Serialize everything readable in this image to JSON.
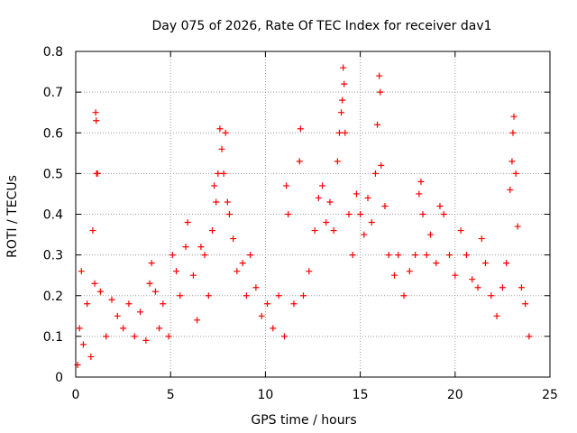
{
  "chart_data": {
    "type": "scatter",
    "title": "Day 075 of 2026, Rate Of TEC Index for receiver dav1",
    "xlabel": "GPS time / hours",
    "ylabel": "ROTI / TECUs",
    "xlim": [
      0,
      25
    ],
    "ylim": [
      0,
      0.8
    ],
    "xticks": [
      0,
      5,
      10,
      15,
      20,
      25
    ],
    "yticks": [
      0,
      0.1,
      0.2,
      0.3,
      0.4,
      0.5,
      0.6,
      0.7,
      0.8
    ],
    "xtick_labels": [
      "0",
      "5",
      "10",
      "15",
      "20",
      "25"
    ],
    "ytick_labels": [
      "0",
      "0.1",
      "0.2",
      "0.3",
      "0.4",
      "0.5",
      "0.6",
      "0.7",
      "0.8"
    ],
    "grid": true,
    "marker": "+",
    "color": "#ff0000",
    "series": [
      {
        "name": "ROTI",
        "points": [
          [
            0.1,
            0.03
          ],
          [
            0.2,
            0.12
          ],
          [
            0.3,
            0.26
          ],
          [
            0.4,
            0.08
          ],
          [
            0.6,
            0.18
          ],
          [
            0.8,
            0.05
          ],
          [
            0.9,
            0.36
          ],
          [
            1.0,
            0.23
          ],
          [
            1.05,
            0.65
          ],
          [
            1.08,
            0.63
          ],
          [
            1.1,
            0.5
          ],
          [
            1.15,
            0.5
          ],
          [
            1.3,
            0.21
          ],
          [
            1.6,
            0.1
          ],
          [
            1.9,
            0.19
          ],
          [
            2.2,
            0.15
          ],
          [
            2.5,
            0.12
          ],
          [
            2.8,
            0.18
          ],
          [
            3.1,
            0.1
          ],
          [
            3.4,
            0.16
          ],
          [
            3.7,
            0.09
          ],
          [
            3.9,
            0.23
          ],
          [
            4.0,
            0.28
          ],
          [
            4.2,
            0.21
          ],
          [
            4.4,
            0.12
          ],
          [
            4.6,
            0.18
          ],
          [
            4.9,
            0.1
          ],
          [
            5.1,
            0.3
          ],
          [
            5.3,
            0.26
          ],
          [
            5.5,
            0.2
          ],
          [
            5.8,
            0.32
          ],
          [
            5.9,
            0.38
          ],
          [
            6.2,
            0.25
          ],
          [
            6.4,
            0.14
          ],
          [
            6.6,
            0.32
          ],
          [
            6.8,
            0.3
          ],
          [
            7.0,
            0.2
          ],
          [
            7.2,
            0.36
          ],
          [
            7.3,
            0.47
          ],
          [
            7.4,
            0.43
          ],
          [
            7.5,
            0.5
          ],
          [
            7.6,
            0.61
          ],
          [
            7.7,
            0.56
          ],
          [
            7.8,
            0.5
          ],
          [
            7.9,
            0.6
          ],
          [
            8.0,
            0.43
          ],
          [
            8.1,
            0.4
          ],
          [
            8.3,
            0.34
          ],
          [
            8.5,
            0.26
          ],
          [
            8.8,
            0.28
          ],
          [
            9.0,
            0.2
          ],
          [
            9.2,
            0.3
          ],
          [
            9.5,
            0.22
          ],
          [
            9.8,
            0.15
          ],
          [
            10.1,
            0.18
          ],
          [
            10.4,
            0.12
          ],
          [
            10.7,
            0.2
          ],
          [
            11.0,
            0.1
          ],
          [
            11.1,
            0.47
          ],
          [
            11.2,
            0.4
          ],
          [
            11.5,
            0.18
          ],
          [
            11.8,
            0.53
          ],
          [
            11.85,
            0.61
          ],
          [
            12.0,
            0.2
          ],
          [
            12.3,
            0.26
          ],
          [
            12.6,
            0.36
          ],
          [
            12.8,
            0.44
          ],
          [
            13.0,
            0.47
          ],
          [
            13.2,
            0.38
          ],
          [
            13.4,
            0.43
          ],
          [
            13.6,
            0.36
          ],
          [
            13.8,
            0.53
          ],
          [
            13.9,
            0.6
          ],
          [
            14.0,
            0.65
          ],
          [
            14.05,
            0.68
          ],
          [
            14.1,
            0.76
          ],
          [
            14.15,
            0.72
          ],
          [
            14.2,
            0.6
          ],
          [
            14.4,
            0.4
          ],
          [
            14.6,
            0.3
          ],
          [
            14.8,
            0.45
          ],
          [
            15.0,
            0.4
          ],
          [
            15.2,
            0.35
          ],
          [
            15.4,
            0.44
          ],
          [
            15.6,
            0.38
          ],
          [
            15.8,
            0.5
          ],
          [
            15.9,
            0.62
          ],
          [
            16.0,
            0.74
          ],
          [
            16.05,
            0.7
          ],
          [
            16.1,
            0.52
          ],
          [
            16.3,
            0.42
          ],
          [
            16.5,
            0.3
          ],
          [
            16.8,
            0.25
          ],
          [
            17.0,
            0.3
          ],
          [
            17.3,
            0.2
          ],
          [
            17.6,
            0.26
          ],
          [
            17.9,
            0.3
          ],
          [
            18.1,
            0.45
          ],
          [
            18.2,
            0.48
          ],
          [
            18.3,
            0.4
          ],
          [
            18.5,
            0.3
          ],
          [
            18.7,
            0.35
          ],
          [
            19.0,
            0.28
          ],
          [
            19.2,
            0.42
          ],
          [
            19.4,
            0.4
          ],
          [
            19.7,
            0.3
          ],
          [
            20.0,
            0.25
          ],
          [
            20.3,
            0.36
          ],
          [
            20.6,
            0.3
          ],
          [
            20.9,
            0.24
          ],
          [
            21.2,
            0.22
          ],
          [
            21.4,
            0.34
          ],
          [
            21.6,
            0.28
          ],
          [
            21.9,
            0.2
          ],
          [
            22.2,
            0.15
          ],
          [
            22.5,
            0.22
          ],
          [
            22.7,
            0.28
          ],
          [
            22.9,
            0.46
          ],
          [
            23.0,
            0.53
          ],
          [
            23.05,
            0.6
          ],
          [
            23.1,
            0.64
          ],
          [
            23.2,
            0.5
          ],
          [
            23.3,
            0.37
          ],
          [
            23.5,
            0.22
          ],
          [
            23.7,
            0.18
          ],
          [
            23.9,
            0.1
          ]
        ]
      }
    ]
  }
}
